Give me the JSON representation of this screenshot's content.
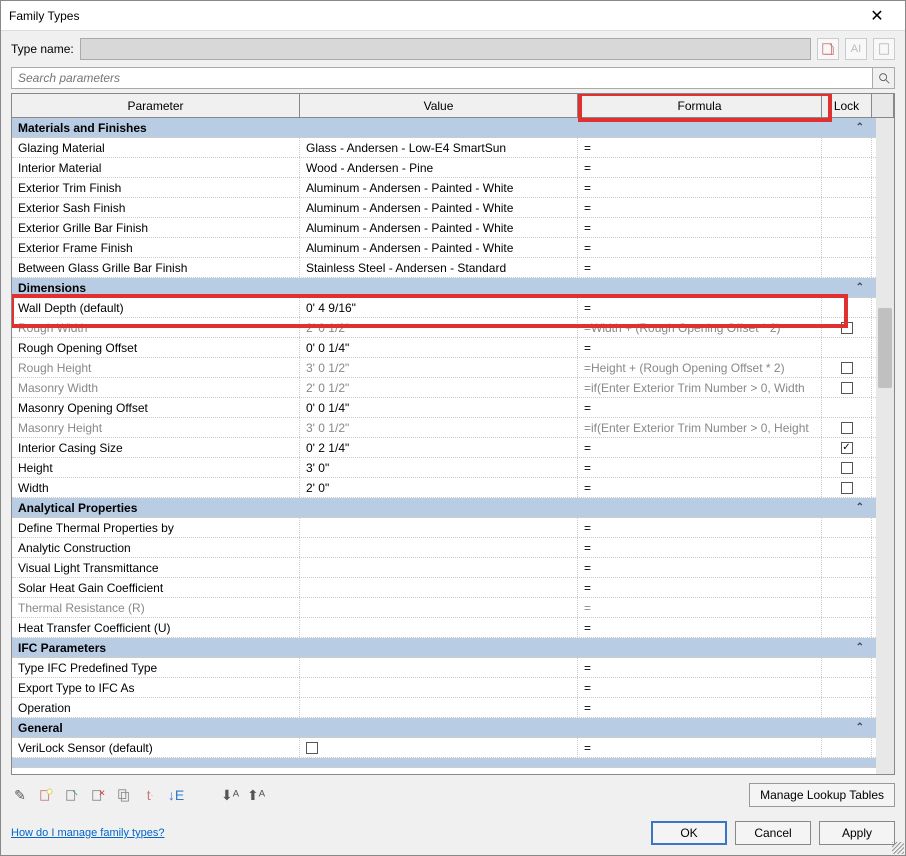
{
  "window": {
    "title": "Family Types"
  },
  "typeName": {
    "label": "Type name:"
  },
  "search": {
    "placeholder": "Search parameters"
  },
  "columns": {
    "parameter": "Parameter",
    "value": "Value",
    "formula": "Formula",
    "lock": "Lock"
  },
  "colors": {
    "groupBg": "#b8cce4",
    "redBox": "#e03030"
  },
  "groups": [
    {
      "name": "Materials and Finishes",
      "rows": [
        {
          "param": "Glazing Material",
          "value": "Glass - Andersen - Low-E4 SmartSun",
          "formula": "=",
          "lock": null
        },
        {
          "param": "Interior Material",
          "value": "Wood - Andersen - Pine",
          "formula": "=",
          "lock": null
        },
        {
          "param": "Exterior Trim Finish",
          "value": "Aluminum - Andersen - Painted - White",
          "formula": "=",
          "lock": null
        },
        {
          "param": "Exterior Sash Finish",
          "value": "Aluminum - Andersen - Painted - White",
          "formula": "=",
          "lock": null
        },
        {
          "param": "Exterior Grille Bar Finish",
          "value": "Aluminum - Andersen - Painted - White",
          "formula": "=",
          "lock": null
        },
        {
          "param": "Exterior Frame Finish",
          "value": "Aluminum - Andersen - Painted - White",
          "formula": "=",
          "lock": null
        },
        {
          "param": "Between Glass Grille Bar Finish",
          "value": "Stainless Steel - Andersen - Standard",
          "formula": "=",
          "lock": null
        }
      ]
    },
    {
      "name": "Dimensions",
      "rows": [
        {
          "param": "Wall Depth (default)",
          "value": "0'  4 9/16\"",
          "formula": "=",
          "lock": null
        },
        {
          "param": "Rough Width",
          "value": "2'  0 1/2\"",
          "formula": "=Width + (Rough Opening Offset * 2)",
          "lock": false,
          "grey": true,
          "highlight": true
        },
        {
          "param": "Rough Opening Offset",
          "value": "0'  0 1/4\"",
          "formula": "=",
          "lock": null
        },
        {
          "param": "Rough Height",
          "value": "3'  0 1/2\"",
          "formula": "=Height + (Rough Opening Offset * 2)",
          "lock": false,
          "grey": true
        },
        {
          "param": "Masonry Width",
          "value": "2'  0 1/2\"",
          "formula": "=if(Enter Exterior Trim Number > 0, Width",
          "lock": false,
          "grey": true
        },
        {
          "param": "Masonry Opening Offset",
          "value": "0'  0 1/4\"",
          "formula": "=",
          "lock": null
        },
        {
          "param": "Masonry Height",
          "value": "3'  0 1/2\"",
          "formula": "=if(Enter Exterior Trim Number > 0, Height",
          "lock": false,
          "grey": true
        },
        {
          "param": "Interior Casing Size",
          "value": "0'  2 1/4\"",
          "formula": "=",
          "lock": true
        },
        {
          "param": "Height",
          "value": "3'  0\"",
          "formula": "=",
          "lock": false
        },
        {
          "param": "Width",
          "value": "2'  0\"",
          "formula": "=",
          "lock": false
        }
      ]
    },
    {
      "name": "Analytical Properties",
      "rows": [
        {
          "param": "Define Thermal Properties by",
          "value": "",
          "formula": "=",
          "lock": null
        },
        {
          "param": "Analytic Construction",
          "value": "",
          "formula": "=",
          "lock": null
        },
        {
          "param": "Visual Light Transmittance",
          "value": "",
          "formula": "=",
          "lock": null
        },
        {
          "param": "Solar Heat Gain Coefficient",
          "value": "",
          "formula": "=",
          "lock": null
        },
        {
          "param": "Thermal Resistance (R)",
          "value": "",
          "formula": "=",
          "lock": null,
          "grey": true
        },
        {
          "param": "Heat Transfer Coefficient (U)",
          "value": "",
          "formula": "=",
          "lock": null
        }
      ]
    },
    {
      "name": "IFC Parameters",
      "rows": [
        {
          "param": "Type IFC Predefined Type",
          "value": "",
          "formula": "=",
          "lock": null
        },
        {
          "param": "Export Type to IFC As",
          "value": "",
          "formula": "=",
          "lock": null
        },
        {
          "param": "Operation",
          "value": "",
          "formula": "=",
          "lock": null
        }
      ]
    },
    {
      "name": "General",
      "rows": [
        {
          "param": "VeriLock Sensor (default)",
          "value": "checkbox",
          "formula": "=",
          "lock": null
        }
      ]
    }
  ],
  "buttons": {
    "manageLookup": "Manage Lookup Tables",
    "ok": "OK",
    "cancel": "Cancel",
    "apply": "Apply"
  },
  "helpLink": "How do I manage family types?",
  "highlightRowTop": 176
}
